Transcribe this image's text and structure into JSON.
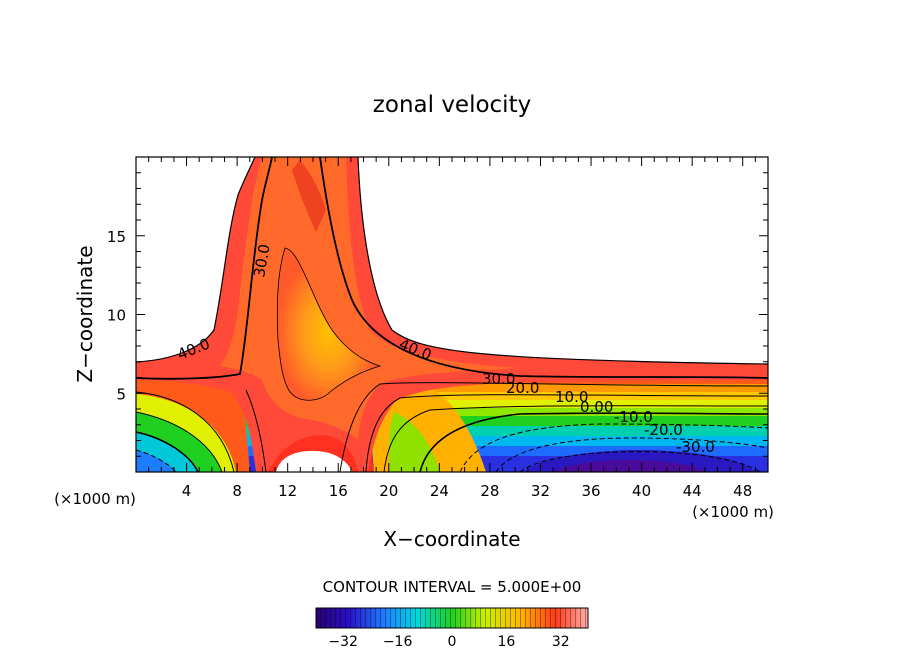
{
  "chart_data": {
    "type": "heatmap",
    "title": "zonal velocity",
    "xlabel": "X−coordinate",
    "ylabel": "Z−coordinate",
    "x_unit_left": "(×1000 m)",
    "x_unit_right": "(×1000 m)",
    "xlim": [
      0,
      50
    ],
    "ylim": [
      0,
      20
    ],
    "x_ticks": [
      "4",
      "8",
      "12",
      "16",
      "20",
      "24",
      "28",
      "32",
      "36",
      "40",
      "44",
      "48"
    ],
    "y_ticks": [
      "5",
      "10",
      "15"
    ],
    "contour_interval_text": "CONTOUR INTERVAL = 5.000E+00",
    "contour_labels": [
      "40.0",
      "30.0",
      "40.0",
      "30.0",
      "20.0",
      "10.0",
      "0.00",
      "-10.0",
      "-20.0",
      "-30.0"
    ],
    "colorbar": {
      "range": [
        -40,
        40
      ],
      "ticks": [
        "−32",
        "−16",
        "0",
        "16",
        "32"
      ],
      "tick_values": [
        -32,
        -16,
        0,
        16,
        32
      ]
    },
    "regions": [
      {
        "name": "vertical jet core",
        "x": [
          9,
          18
        ],
        "z": [
          0,
          20
        ],
        "peak_value": 30
      },
      {
        "name": "negative flow core",
        "x": [
          28,
          48
        ],
        "z": [
          0,
          2
        ],
        "min_value": -35
      }
    ]
  }
}
